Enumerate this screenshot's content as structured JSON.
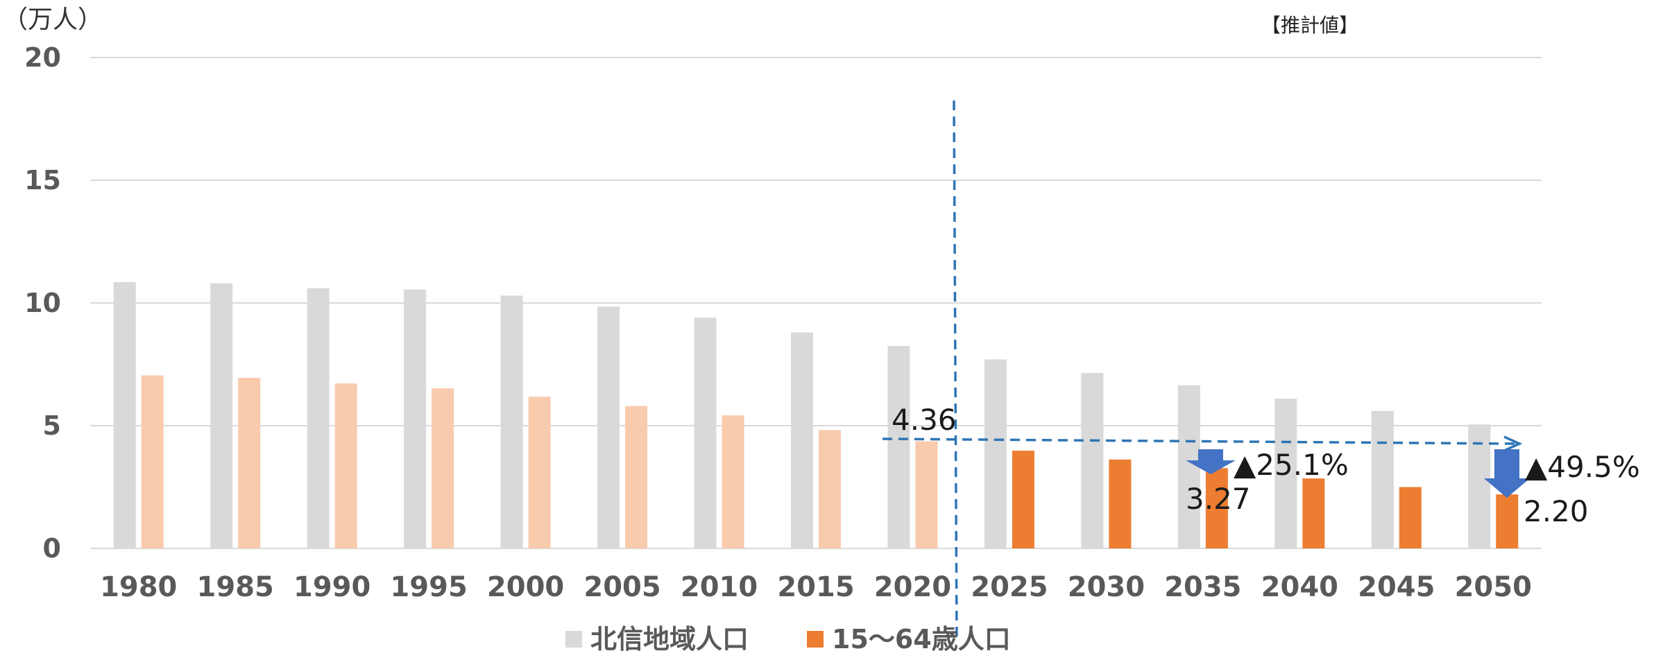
{
  "chart_data": {
    "type": "bar",
    "unit_label": "（万人）",
    "projection_label": "【推計値】",
    "categories": [
      "1980",
      "1985",
      "1990",
      "1995",
      "2000",
      "2005",
      "2010",
      "2015",
      "2020",
      "2025",
      "2030",
      "2035",
      "2040",
      "2045",
      "2050"
    ],
    "series": [
      {
        "name": "北信地域人口",
        "color": "#d9d9d9",
        "values": [
          10.85,
          10.8,
          10.6,
          10.55,
          10.3,
          9.85,
          9.4,
          8.8,
          8.25,
          7.7,
          7.15,
          6.65,
          6.1,
          5.6,
          5.05
        ]
      },
      {
        "name": "15〜64歳人口",
        "color": "#ed7d31",
        "color_past": "#f8cbad",
        "values": [
          7.05,
          6.95,
          6.72,
          6.52,
          6.18,
          5.8,
          5.42,
          4.82,
          4.36,
          3.98,
          3.62,
          3.27,
          2.85,
          2.5,
          2.2
        ]
      }
    ],
    "projection_start_index": 9,
    "ylim": [
      0,
      20
    ],
    "yticks": [
      "0",
      "5",
      "10",
      "15",
      "20"
    ],
    "grid": true,
    "legend_position": "bottom",
    "annotations": {
      "base_value": "4.36",
      "value_2035": "3.27",
      "change_2035": "▲25.1%",
      "value_2050": "2.20",
      "change_2050": "▲49.5%"
    },
    "colors": {
      "arrow": "#4472c4",
      "dashed_line": "#2e75b6"
    }
  }
}
